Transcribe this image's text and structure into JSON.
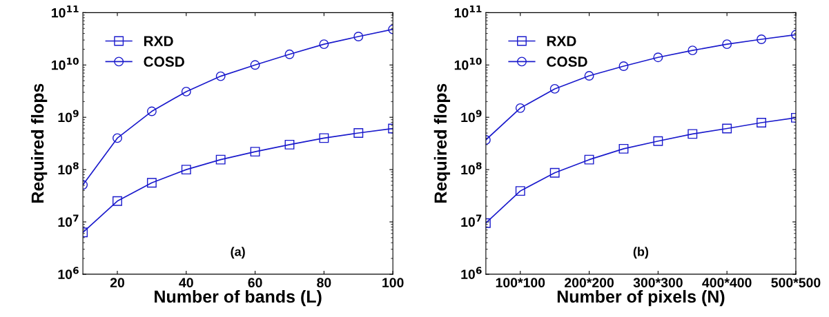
{
  "chart_data": [
    {
      "type": "line",
      "xlabel": "Number of bands (L)",
      "ylabel": "Required flops",
      "annotations": [
        "(a)"
      ],
      "log": "y",
      "grid": false,
      "legend": "top left",
      "x": [
        10,
        20,
        30,
        40,
        50,
        60,
        70,
        80,
        90,
        100
      ],
      "xlim": [
        10,
        100
      ],
      "xticks": [
        20,
        40,
        60,
        80,
        100
      ],
      "ylim": [
        1000000.0,
        100000000000.0
      ],
      "yticks": [
        {
          "value": 1000000.0,
          "label": "10$^{6}$"
        },
        {
          "value": 10000000.0,
          "label": "10$^{7}$"
        },
        {
          "value": 100000000.0,
          "label": "10$^{8}$"
        },
        {
          "value": 1000000000.0,
          "label": "10$^{9}$"
        },
        {
          "value": 10000000000.0,
          "label": "10$^{10}$"
        },
        {
          "value": 100000000000.0,
          "label": "10$^{11}$"
        }
      ],
      "line_style": "solid",
      "series": [
        {
          "name": "RXD",
          "color": "#1a1acc",
          "marker": "square",
          "values": [
            6300000.0,
            25000000.0,
            56000000.0,
            100000000.0,
            155000000.0,
            220000000.0,
            300000000.0,
            400000000.0,
            500000000.0,
            610000000.0
          ]
        },
        {
          "name": "COSD",
          "color": "#1a1acc",
          "marker": "circle",
          "values": [
            51000000.0,
            400000000.0,
            1300000000.0,
            3100000000.0,
            6100000000.0,
            10000000000.0,
            16000000000.0,
            25000000000.0,
            35000000000.0,
            48000000000.0
          ]
        }
      ]
    },
    {
      "type": "line",
      "xlabel": "Number of pixels (N)",
      "ylabel": "Required flops",
      "annotations": [
        "(b)"
      ],
      "log": "y",
      "grid": false,
      "legend": "top left",
      "categories": [
        null,
        "100*100",
        null,
        "200*200",
        null,
        "300*300",
        null,
        "400*400",
        null,
        "500*500"
      ],
      "ylim": [
        1000000.0,
        100000000000.0
      ],
      "yticks": [
        {
          "value": 1000000.0,
          "label": "10$^{6}$"
        },
        {
          "value": 10000000.0,
          "label": "10$^{7}$"
        },
        {
          "value": 100000000.0,
          "label": "10$^{8}$"
        },
        {
          "value": 1000000000.0,
          "label": "10$^{9}$"
        },
        {
          "value": 10000000000.0,
          "label": "10$^{10}$"
        },
        {
          "value": 100000000000.0,
          "label": "10$^{11}$"
        }
      ],
      "line_style": "solid",
      "series": [
        {
          "name": "RXD",
          "color": "#1a1acc",
          "marker": "square",
          "values": [
            9500000.0,
            39000000.0,
            87000000.0,
            155000000.0,
            250000000.0,
            350000000.0,
            480000000.0,
            610000000.0,
            790000000.0,
            980000000.0
          ]
        },
        {
          "name": "COSD",
          "color": "#1a1acc",
          "marker": "circle",
          "values": [
            370000000.0,
            1500000000.0,
            3500000000.0,
            6200000000.0,
            9500000000.0,
            14000000000.0,
            19000000000.0,
            25000000000.0,
            31000000000.0,
            38000000000.0
          ]
        }
      ]
    }
  ]
}
